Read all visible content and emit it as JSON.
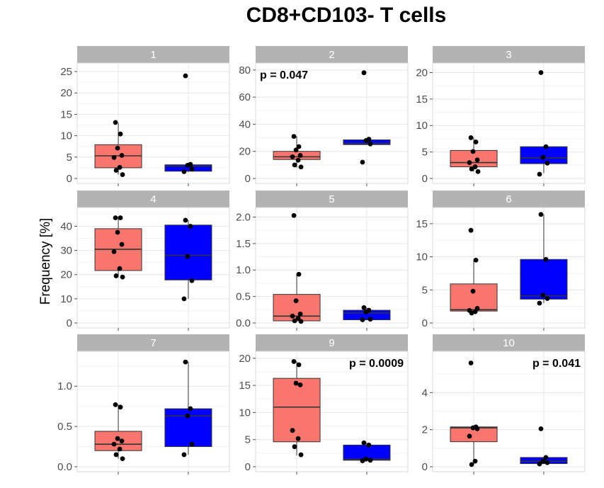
{
  "chart_data": {
    "type": "boxplot",
    "title": "CD8+CD103- T cells",
    "ylabel": "Frequency [%]",
    "xlabel": "",
    "group_colors": [
      "#f8766d",
      "#0000ff"
    ],
    "point_color": "#000000",
    "strip_color": "#b3b3b3",
    "panels": [
      {
        "label": "1",
        "ylim": [
          0,
          26
        ],
        "ticks": [
          0,
          5,
          10,
          15,
          20,
          25
        ],
        "tick_labels": [
          "0",
          "5",
          "10",
          "15",
          "20",
          "25"
        ],
        "pvalue": "",
        "pvalue_pos": "top-left",
        "groups": [
          {
            "q1": 2.5,
            "median": 5.3,
            "q3": 7.9,
            "whisker_low": 0.9,
            "whisker_high": 13.0,
            "points": [
              13.1,
              10.4,
              7.1,
              5.4,
              4.9,
              2.6,
              1.9,
              0.9
            ]
          },
          {
            "q1": 1.7,
            "median": 2.9,
            "q3": 3.2,
            "whisker_low": 1.5,
            "whisker_high": 3.3,
            "points": [
              24.0,
              3.3,
              3.1,
              2.2,
              1.6
            ]
          }
        ]
      },
      {
        "label": "2",
        "ylim": [
          0,
          82
        ],
        "ticks": [
          0,
          20,
          40,
          60,
          80
        ],
        "tick_labels": [
          "0",
          "20",
          "40",
          "60",
          "80"
        ],
        "pvalue": "p = 0.047",
        "pvalue_pos": "top-left",
        "groups": [
          {
            "q1": 14,
            "median": 16,
            "q3": 20,
            "whisker_low": 8,
            "whisker_high": 31,
            "points": [
              31,
              23.5,
              21,
              17,
              16,
              13.5,
              10,
              8.5
            ]
          },
          {
            "q1": 25,
            "median": 26,
            "q3": 28.5,
            "whisker_low": 25,
            "whisker_high": 28.5,
            "points": [
              78,
              29,
              28,
              25.5,
              12
            ]
          }
        ]
      },
      {
        "label": "3",
        "ylim": [
          0,
          21
        ],
        "ticks": [
          0,
          5,
          10,
          15,
          20
        ],
        "tick_labels": [
          "0",
          "5",
          "10",
          "15",
          "20"
        ],
        "pvalue": "",
        "pvalue_pos": "top-left",
        "groups": [
          {
            "q1": 2.2,
            "median": 3.0,
            "q3": 5.3,
            "whisker_low": 1.3,
            "whisker_high": 7.7,
            "points": [
              7.7,
              6.9,
              5.1,
              3.5,
              3.0,
              2.2,
              1.8,
              1.3
            ]
          },
          {
            "q1": 2.8,
            "median": 3.9,
            "q3": 6.0,
            "whisker_low": 1.0,
            "whisker_high": 6.1,
            "points": [
              20.0,
              6.0,
              4.0,
              2.9,
              0.8
            ]
          }
        ]
      },
      {
        "label": "4",
        "ylim": [
          0,
          46
        ],
        "ticks": [
          0,
          10,
          20,
          30,
          40
        ],
        "tick_labels": [
          "0",
          "10",
          "20",
          "30",
          "40"
        ],
        "pvalue": "",
        "pvalue_pos": "top-left",
        "groups": [
          {
            "q1": 21.7,
            "median": 30.5,
            "q3": 39.0,
            "whisker_low": 19.0,
            "whisker_high": 44.0,
            "points": [
              43.5,
              43.5,
              37.5,
              32.5,
              29.5,
              22.5,
              19.5,
              19.0
            ]
          },
          {
            "q1": 17.8,
            "median": 28.0,
            "q3": 40.5,
            "whisker_low": 10.0,
            "whisker_high": 42.5,
            "points": [
              42.5,
              40.0,
              27.5,
              17.5,
              10.0
            ]
          }
        ]
      },
      {
        "label": "5",
        "ylim": [
          0,
          2.1
        ],
        "ticks": [
          0,
          0.5,
          1.0,
          1.5,
          2.0
        ],
        "tick_labels": [
          "0.0",
          "0.5",
          "1.0",
          "1.5",
          "2.0"
        ],
        "pvalue": "",
        "pvalue_pos": "top-left",
        "groups": [
          {
            "q1": 0.04,
            "median": 0.13,
            "q3": 0.54,
            "whisker_low": 0.02,
            "whisker_high": 0.92,
            "points": [
              2.03,
              0.92,
              0.42,
              0.17,
              0.13,
              0.09,
              0.04,
              0.03
            ]
          },
          {
            "q1": 0.06,
            "median": 0.19,
            "q3": 0.24,
            "whisker_low": 0.06,
            "whisker_high": 0.29,
            "points": [
              0.29,
              0.24,
              0.21,
              0.07,
              0.06
            ]
          }
        ]
      },
      {
        "label": "6",
        "ylim": [
          0,
          16.8
        ],
        "ticks": [
          0,
          5,
          10,
          15
        ],
        "tick_labels": [
          "0",
          "5",
          "10",
          "15"
        ],
        "pvalue": "",
        "pvalue_pos": "top-left",
        "groups": [
          {
            "q1": 1.8,
            "median": 2.0,
            "q3": 5.9,
            "whisker_low": 1.5,
            "whisker_high": 9.4,
            "points": [
              14.0,
              9.5,
              4.8,
              2.2,
              1.9,
              1.7,
              1.5
            ]
          },
          {
            "q1": 3.6,
            "median": 4.1,
            "q3": 9.6,
            "whisker_low": 3.0,
            "whisker_high": 16.4,
            "points": [
              16.4,
              9.6,
              4.2,
              3.7,
              3.0
            ]
          }
        ]
      },
      {
        "label": "7",
        "ylim": [
          0,
          1.38
        ],
        "ticks": [
          0,
          0.5,
          1.0
        ],
        "tick_labels": [
          "0.0",
          "0.5",
          "1.0"
        ],
        "pvalue": "",
        "pvalue_pos": "top-left",
        "groups": [
          {
            "q1": 0.2,
            "median": 0.28,
            "q3": 0.44,
            "whisker_low": 0.1,
            "whisker_high": 0.77,
            "points": [
              0.77,
              0.74,
              0.35,
              0.32,
              0.28,
              0.22,
              0.15,
              0.1
            ]
          },
          {
            "q1": 0.25,
            "median": 0.63,
            "q3": 0.72,
            "whisker_low": 0.15,
            "whisker_high": 1.3,
            "points": [
              1.3,
              0.72,
              0.63,
              0.28,
              0.15
            ]
          }
        ]
      },
      {
        "label": "9",
        "ylim": [
          0,
          20.5
        ],
        "ticks": [
          0,
          5,
          10,
          15,
          20
        ],
        "tick_labels": [
          "0",
          "5",
          "10",
          "15",
          "20"
        ],
        "pvalue": "p = 0.0009",
        "pvalue_pos": "top-right",
        "groups": [
          {
            "q1": 4.6,
            "median": 11.0,
            "q3": 16.3,
            "whisker_low": 2.1,
            "whisker_high": 19.4,
            "points": [
              19.4,
              18.8,
              15.4,
              15.1,
              6.7,
              5.2,
              3.7,
              2.2
            ]
          },
          {
            "q1": 1.2,
            "median": 1.4,
            "q3": 4.0,
            "whisker_low": 1.1,
            "whisker_high": 4.4,
            "points": [
              4.4,
              4.0,
              1.4,
              1.2,
              1.1
            ]
          }
        ]
      },
      {
        "label": "10",
        "ylim": [
          0,
          6.0
        ],
        "ticks": [
          0,
          2,
          4
        ],
        "tick_labels": [
          "0",
          "2",
          "4"
        ],
        "pvalue": "p = 0.041",
        "pvalue_pos": "top-right",
        "groups": [
          {
            "q1": 1.35,
            "median": 2.1,
            "q3": 2.15,
            "whisker_low": 0.12,
            "whisker_high": 2.15,
            "points": [
              5.6,
              2.15,
              2.1,
              2.05,
              1.65,
              0.3,
              0.12
            ]
          },
          {
            "q1": 0.17,
            "median": 0.3,
            "q3": 0.5,
            "whisker_low": 0.15,
            "whisker_high": 0.5,
            "points": [
              2.05,
              0.5,
              0.3,
              0.22,
              0.15
            ]
          }
        ]
      }
    ]
  }
}
